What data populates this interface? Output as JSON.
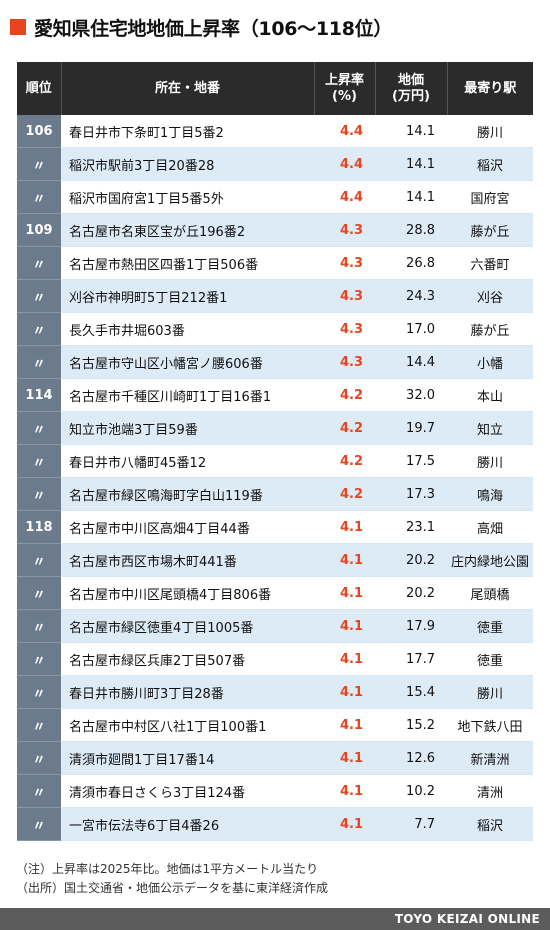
{
  "title": "愛知県住宅地地価上昇率（106〜118位）",
  "accent_color": "#e8451e",
  "headers": {
    "rank": "順位",
    "address": "所在・地番",
    "rate_line1": "上昇率",
    "rate_line2": "(%)",
    "price_line1": "地価",
    "price_line2": "(万円)",
    "station": "最寄り駅"
  },
  "rows": [
    {
      "rank": "106",
      "address": "春日井市下条町1丁目5番2",
      "rate": "4.4",
      "price": "14.1",
      "station": "勝川"
    },
    {
      "rank": "〃",
      "address": "稲沢市駅前3丁目20番28",
      "rate": "4.4",
      "price": "14.1",
      "station": "稲沢"
    },
    {
      "rank": "〃",
      "address": "稲沢市国府宮1丁目5番5外",
      "rate": "4.4",
      "price": "14.1",
      "station": "国府宮"
    },
    {
      "rank": "109",
      "address": "名古屋市名東区宝が丘196番2",
      "rate": "4.3",
      "price": "28.8",
      "station": "藤が丘"
    },
    {
      "rank": "〃",
      "address": "名古屋市熱田区四番1丁目506番",
      "rate": "4.3",
      "price": "26.8",
      "station": "六番町"
    },
    {
      "rank": "〃",
      "address": "刈谷市神明町5丁目212番1",
      "rate": "4.3",
      "price": "24.3",
      "station": "刈谷"
    },
    {
      "rank": "〃",
      "address": "長久手市井堀603番",
      "rate": "4.3",
      "price": "17.0",
      "station": "藤が丘"
    },
    {
      "rank": "〃",
      "address": "名古屋市守山区小幡宮ノ腰606番",
      "rate": "4.3",
      "price": "14.4",
      "station": "小幡"
    },
    {
      "rank": "114",
      "address": "名古屋市千種区川崎町1丁目16番1",
      "rate": "4.2",
      "price": "32.0",
      "station": "本山"
    },
    {
      "rank": "〃",
      "address": "知立市池端3丁目59番",
      "rate": "4.2",
      "price": "19.7",
      "station": "知立"
    },
    {
      "rank": "〃",
      "address": "春日井市八幡町45番12",
      "rate": "4.2",
      "price": "17.5",
      "station": "勝川"
    },
    {
      "rank": "〃",
      "address": "名古屋市緑区鳴海町字白山119番",
      "rate": "4.2",
      "price": "17.3",
      "station": "鳴海"
    },
    {
      "rank": "118",
      "address": "名古屋市中川区高畑4丁目44番",
      "rate": "4.1",
      "price": "23.1",
      "station": "高畑"
    },
    {
      "rank": "〃",
      "address": "名古屋市西区市場木町441番",
      "rate": "4.1",
      "price": "20.2",
      "station": "庄内緑地公園"
    },
    {
      "rank": "〃",
      "address": "名古屋市中川区尾頭橋4丁目806番",
      "rate": "4.1",
      "price": "20.2",
      "station": "尾頭橋"
    },
    {
      "rank": "〃",
      "address": "名古屋市緑区徳重4丁目1005番",
      "rate": "4.1",
      "price": "17.9",
      "station": "徳重"
    },
    {
      "rank": "〃",
      "address": "名古屋市緑区兵庫2丁目507番",
      "rate": "4.1",
      "price": "17.7",
      "station": "徳重"
    },
    {
      "rank": "〃",
      "address": "春日井市勝川町3丁目28番",
      "rate": "4.1",
      "price": "15.4",
      "station": "勝川"
    },
    {
      "rank": "〃",
      "address": "名古屋市中村区八社1丁目100番1",
      "rate": "4.1",
      "price": "15.2",
      "station": "地下鉄八田"
    },
    {
      "rank": "〃",
      "address": "清須市廻間1丁目17番14",
      "rate": "4.1",
      "price": "12.6",
      "station": "新清洲"
    },
    {
      "rank": "〃",
      "address": "清須市春日さくら3丁目124番",
      "rate": "4.1",
      "price": "10.2",
      "station": "清洲"
    },
    {
      "rank": "〃",
      "address": "一宮市伝法寺6丁目4番26",
      "rate": "4.1",
      "price": "7.7",
      "station": "稲沢"
    }
  ],
  "notes": [
    "（注）上昇率は2025年比。地価は1平方メートル当たり",
    "（出所）国土交通省・地価公示データを基に東洋経済作成"
  ],
  "footer": "TOYO KEIZAI ONLINE"
}
